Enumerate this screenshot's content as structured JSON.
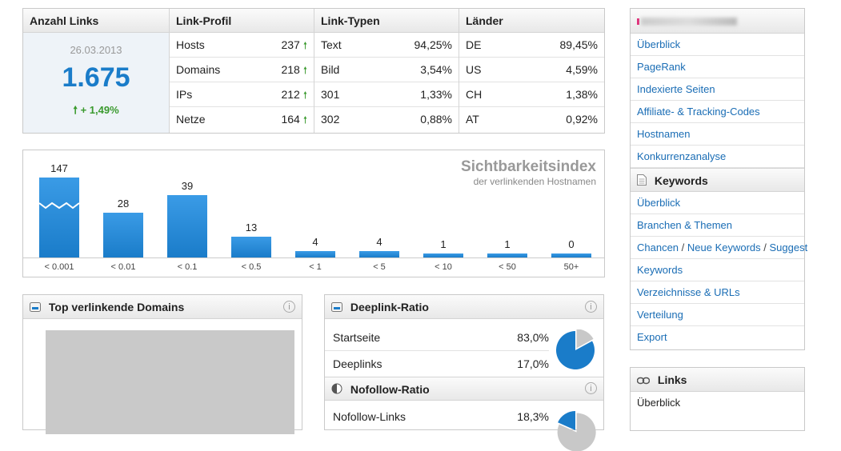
{
  "summary": {
    "anzahl": {
      "title": "Anzahl Links",
      "date": "26.03.2013",
      "value": "1.675",
      "delta": "+ 1,49%"
    },
    "profil": {
      "title": "Link-Profil",
      "rows": [
        {
          "label": "Hosts",
          "value": "237"
        },
        {
          "label": "Domains",
          "value": "218"
        },
        {
          "label": "IPs",
          "value": "212"
        },
        {
          "label": "Netze",
          "value": "164"
        }
      ]
    },
    "typen": {
      "title": "Link-Typen",
      "rows": [
        {
          "label": "Text",
          "value": "94,25%"
        },
        {
          "label": "Bild",
          "value": "3,54%"
        },
        {
          "label": "301",
          "value": "1,33%"
        },
        {
          "label": "302",
          "value": "0,88%"
        }
      ]
    },
    "laender": {
      "title": "Länder",
      "rows": [
        {
          "label": "DE",
          "value": "89,45%"
        },
        {
          "label": "US",
          "value": "4,59%"
        },
        {
          "label": "CH",
          "value": "1,38%"
        },
        {
          "label": "AT",
          "value": "0,92%"
        }
      ]
    },
    "up_icon": "arrow-up-icon"
  },
  "chart_data": {
    "type": "bar",
    "title": "Sichtbarkeitsindex",
    "subtitle": "der verlinkenden Hostnamen",
    "categories": [
      "< 0.001",
      "< 0.01",
      "< 0.1",
      "< 0.5",
      "< 1",
      "< 5",
      "< 10",
      "< 50",
      "50+"
    ],
    "values": [
      147,
      28,
      39,
      13,
      4,
      4,
      1,
      1,
      0
    ],
    "axis_break_on_first_bar": true,
    "bar_color": "#1a7cc9",
    "grid": false,
    "legend": "none"
  },
  "top_domains": {
    "title": "Top verlinkende Domains",
    "info": "i"
  },
  "deeplink": {
    "title": "Deeplink-Ratio",
    "info": "i",
    "rows": [
      {
        "label": "Startseite",
        "value": "83,0%"
      },
      {
        "label": "Deeplinks",
        "value": "17,0%"
      }
    ],
    "pie": [
      83.0,
      17.0
    ]
  },
  "nofollow": {
    "title": "Nofollow-Ratio",
    "info": "i",
    "rows": [
      {
        "label": "Nofollow-Links",
        "value": "18,3%"
      }
    ],
    "pie": [
      18.3,
      81.7
    ]
  },
  "colors": {
    "accent": "#1a7cc9",
    "up": "#3a9a2e",
    "pie_rest": "#c8c8c8"
  },
  "sidebar": {
    "items_top": [
      "Überblick",
      "PageRank",
      "Indexierte Seiten",
      "Affiliate- & Tracking-Codes",
      "Hostnamen",
      "Konkurrenzanalyse"
    ],
    "keywords_head": "Keywords",
    "keywords_items": [
      "Überblick",
      "Branchen & Themen"
    ],
    "chancen": [
      "Chancen",
      "Neue Keywords",
      "Suggest"
    ],
    "sep": " / ",
    "keywords_items2": [
      "Keywords",
      "Verzeichnisse & URLs",
      "Verteilung",
      "Export"
    ],
    "links_head": "Links",
    "links_items": [
      "Überblick"
    ]
  }
}
